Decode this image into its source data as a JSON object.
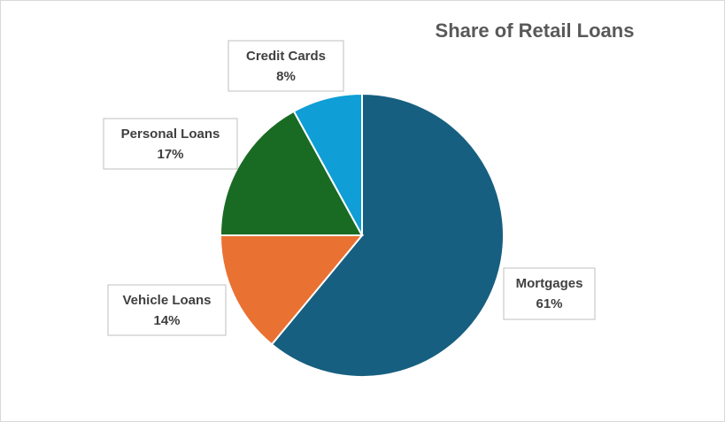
{
  "chart_data": {
    "type": "pie",
    "title": "Share of Retail Loans",
    "categories": [
      "Mortgages",
      "Vehicle Loans",
      "Personal Loans",
      "Credit Cards"
    ],
    "values": [
      61,
      14,
      17,
      8
    ],
    "value_labels": [
      "61%",
      "14%",
      "17%",
      "8%"
    ],
    "colors": [
      "#175f80",
      "#e97132",
      "#196b24",
      "#0f9ed5"
    ]
  }
}
